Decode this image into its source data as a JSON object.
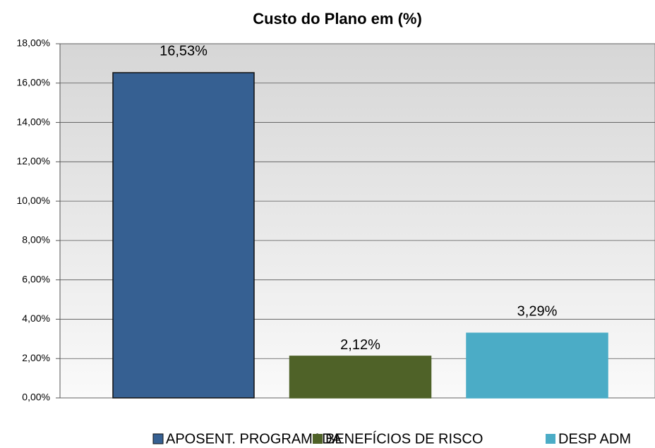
{
  "chart_data": {
    "type": "bar",
    "title": "Custo do Plano  em (%)",
    "categories": [
      "APOSENT. PROGRAMADA",
      "BENEFÍCIOS DE RISCO",
      "DESP ADM"
    ],
    "values": [
      16.53,
      2.12,
      3.29
    ],
    "value_labels": [
      "16,53%",
      "2,12%",
      "3,29%"
    ],
    "colors": [
      "#366092",
      "#4f6228",
      "#4bacc6"
    ],
    "ylim": [
      0,
      18
    ],
    "yticks": [
      {
        "value": 0,
        "label": "0,00%"
      },
      {
        "value": 2,
        "label": "2,00%"
      },
      {
        "value": 4,
        "label": "4,00%"
      },
      {
        "value": 6,
        "label": "6,00%"
      },
      {
        "value": 8,
        "label": "8,00%"
      },
      {
        "value": 10,
        "label": "10,00%"
      },
      {
        "value": 12,
        "label": "12,00%"
      },
      {
        "value": 14,
        "label": "14,00%"
      },
      {
        "value": 16,
        "label": "16,00%"
      },
      {
        "value": 18,
        "label": "18,00%"
      }
    ],
    "grid": true,
    "legend": "bottom"
  }
}
